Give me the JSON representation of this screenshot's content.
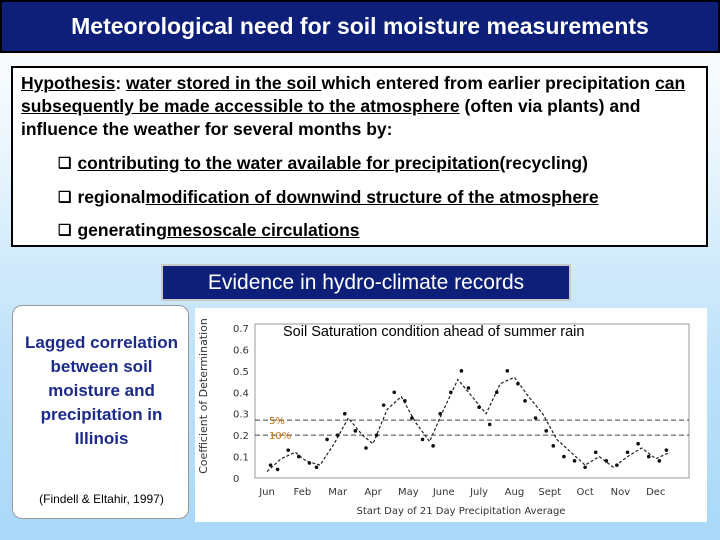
{
  "slide_title": "Meteorological need for soil moisture measurements",
  "hypothesis": {
    "label": "Hypothesis",
    "text_1": ": ",
    "u_1": "water stored in the soil ",
    "text_2": "which entered from earlier precipitation ",
    "u_2": "can subsequently be made accessible to the atmosphere",
    "text_3": " (often via plants) and influence the weather for several months by:",
    "bullets": [
      {
        "underlined": "contributing to the water available for precipitation",
        "rest": " (recycling)"
      },
      {
        "plain": "regional ",
        "underlined": "modification of downwind structure of the atmosphere "
      },
      {
        "plain": "generating ",
        "underlined": "mesoscale circulations "
      }
    ]
  },
  "evidence_title": "Evidence in hydro-climate records",
  "left_panel": {
    "text": "Lagged correlation between soil moisture and precipitation in Illinois",
    "citation": "(Findell & Eltahir, 1997)"
  },
  "chart_data": {
    "type": "scatter",
    "title": "Soil Saturation condition ahead of summer rain",
    "xlabel": "Start Day of 21 Day Precipitation Average",
    "ylabel": "Coefficient of Determination",
    "ylim": [
      0,
      0.7
    ],
    "yticks": [
      "0.7",
      "0.6",
      "0.5",
      "0.4",
      "0.3",
      "0.2",
      "0.1",
      "0"
    ],
    "xticks": [
      "Jun",
      "Feb",
      "Mar",
      "Apr",
      "May",
      "June",
      "July",
      "Aug",
      "Sept",
      "Oct",
      "Nov",
      "Dec"
    ],
    "reference_lines": [
      {
        "label": "5%",
        "value": 0.27
      },
      {
        "label": "10%",
        "value": 0.2
      }
    ],
    "curve": {
      "x": [
        0,
        0.4,
        0.8,
        1.1,
        1.5,
        1.9,
        2.3,
        2.7,
        3.0,
        3.4,
        3.8,
        4.2,
        4.6,
        5.0,
        5.4,
        5.8,
        6.2,
        6.6,
        7.0,
        7.4,
        7.8,
        8.2,
        8.6,
        9.0,
        9.4,
        9.8,
        10.2,
        10.6,
        11.0,
        11.4
      ],
      "y": [
        0.03,
        0.09,
        0.12,
        0.08,
        0.06,
        0.16,
        0.28,
        0.2,
        0.16,
        0.32,
        0.38,
        0.26,
        0.17,
        0.32,
        0.46,
        0.38,
        0.3,
        0.44,
        0.47,
        0.38,
        0.3,
        0.18,
        0.12,
        0.06,
        0.1,
        0.05,
        0.1,
        0.14,
        0.09,
        0.12
      ]
    },
    "scatter": {
      "x": [
        0.1,
        0.3,
        0.6,
        0.9,
        1.2,
        1.4,
        1.7,
        2.0,
        2.2,
        2.5,
        2.8,
        3.1,
        3.3,
        3.6,
        3.9,
        4.1,
        4.4,
        4.7,
        4.9,
        5.2,
        5.5,
        5.7,
        6.0,
        6.3,
        6.5,
        6.8,
        7.1,
        7.3,
        7.6,
        7.9,
        8.1,
        8.4,
        8.7,
        9.0,
        9.3,
        9.6,
        9.9,
        10.2,
        10.5,
        10.8,
        11.1,
        11.3
      ],
      "y": [
        0.06,
        0.04,
        0.13,
        0.1,
        0.07,
        0.05,
        0.18,
        0.2,
        0.3,
        0.22,
        0.14,
        0.2,
        0.34,
        0.4,
        0.36,
        0.28,
        0.18,
        0.15,
        0.3,
        0.4,
        0.5,
        0.42,
        0.33,
        0.25,
        0.4,
        0.5,
        0.44,
        0.36,
        0.28,
        0.22,
        0.15,
        0.1,
        0.08,
        0.05,
        0.12,
        0.08,
        0.06,
        0.12,
        0.16,
        0.1,
        0.08,
        0.13
      ]
    }
  }
}
